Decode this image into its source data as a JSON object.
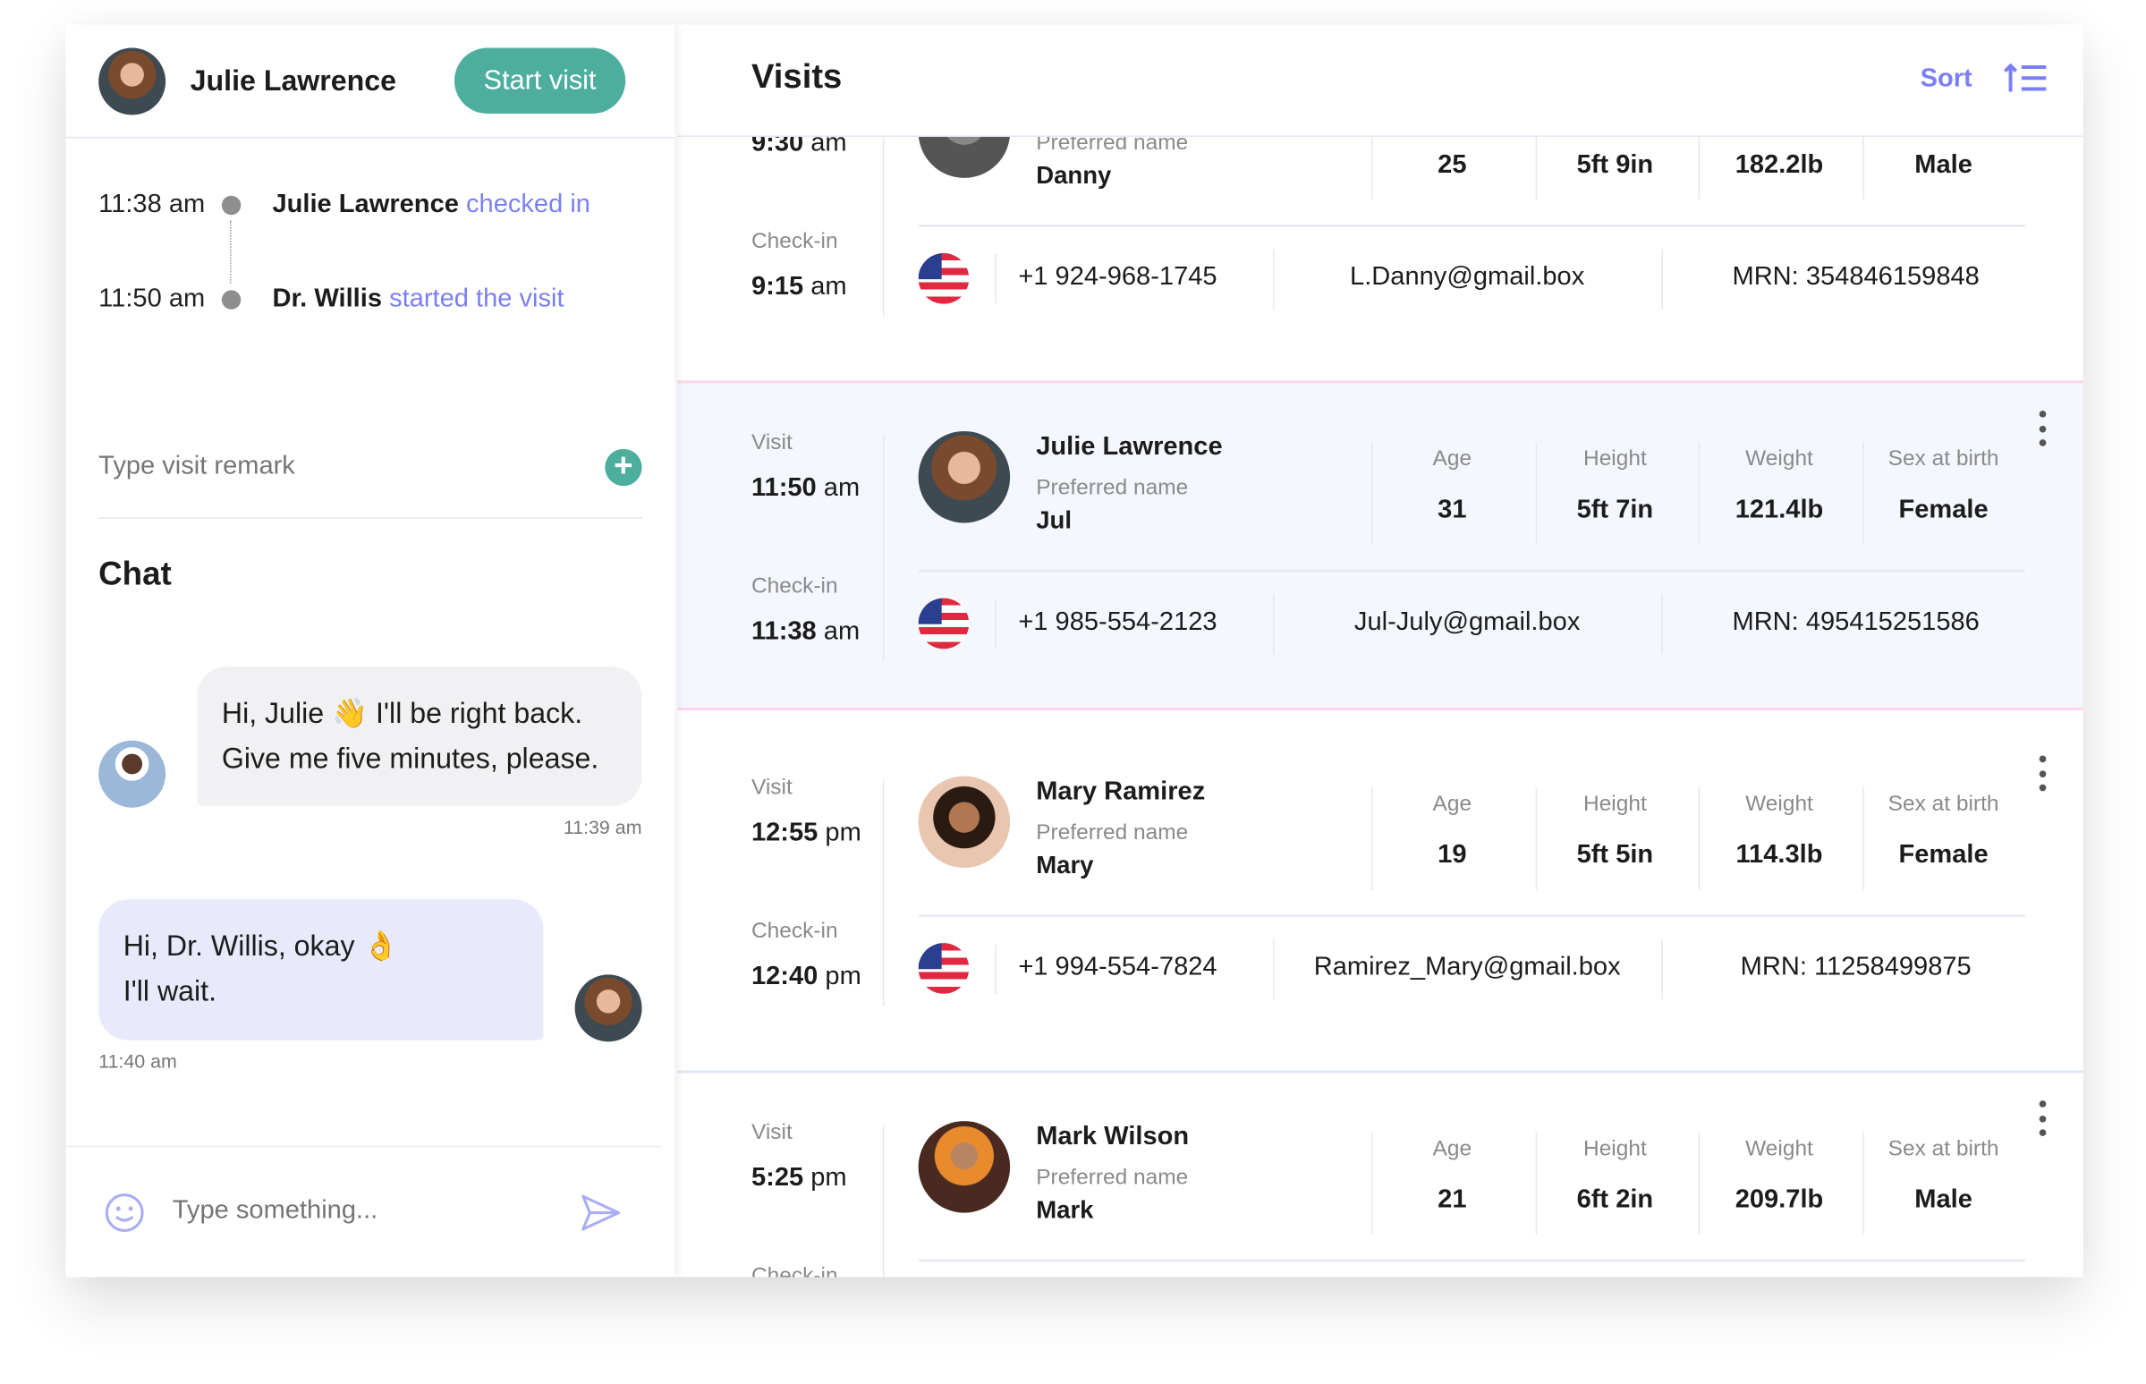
{
  "colors": {
    "accent": "#7b7ff5",
    "teal": "#4dae9e",
    "highlight_bg": "#f5f7fe",
    "highlight_border": "#fbd5ef"
  },
  "left": {
    "patient_name": "Julie Lawrence",
    "start_visit_label": "Start visit",
    "timeline": [
      {
        "time": "11:38 am",
        "actor": "Julie Lawrence",
        "action": "checked in"
      },
      {
        "time": "11:50 am",
        "actor": "Dr. Willis",
        "action": "started the visit"
      }
    ],
    "remark_placeholder": "Type visit remark",
    "chat_title": "Chat",
    "messages": [
      {
        "from": "doctor",
        "line1": "Hi, Julie 👋  I'll be right back.",
        "line2": "Give me five minutes, please.",
        "time": "11:39 am"
      },
      {
        "from": "patient",
        "line1": "Hi, Dr. Willis, okay 👌",
        "line2": "I'll wait.",
        "time": "11:40 am"
      }
    ],
    "message_placeholder": "Type something..."
  },
  "right": {
    "title": "Visits",
    "sort_label": "Sort",
    "labels": {
      "visit": "Visit",
      "checkin": "Check-in",
      "preferred": "Preferred name",
      "age": "Age",
      "height": "Height",
      "weight": "Weight",
      "sex": "Sex at birth"
    },
    "visits": [
      {
        "name": "",
        "visit_time": "9:30",
        "visit_ampm": "am",
        "checkin_time": "9:15",
        "checkin_ampm": "am",
        "preferred": "Danny",
        "age": "25",
        "height": "5ft 9in",
        "weight": "182.2lb",
        "sex": "Male",
        "phone": "+1 924-968-1745",
        "email": "L.Danny@gmail.box",
        "mrn": "MRN: 354846159848",
        "avatar": "danny",
        "highlighted": false
      },
      {
        "name": "Julie Lawrence",
        "visit_time": "11:50",
        "visit_ampm": "am",
        "checkin_time": "11:38",
        "checkin_ampm": "am",
        "preferred": "Jul",
        "age": "31",
        "height": "5ft 7in",
        "weight": "121.4lb",
        "sex": "Female",
        "phone": "+1 985-554-2123",
        "email": "Jul-July@gmail.box",
        "mrn": "MRN: 495415251586",
        "avatar": "julie",
        "highlighted": true
      },
      {
        "name": "Mary Ramirez",
        "visit_time": "12:55",
        "visit_ampm": "pm",
        "checkin_time": "12:40",
        "checkin_ampm": "pm",
        "preferred": "Mary",
        "age": "19",
        "height": "5ft 5in",
        "weight": "114.3lb",
        "sex": "Female",
        "phone": "+1 994-554-7824",
        "email": "Ramirez_Mary@gmail.box",
        "mrn": "MRN: 11258499875",
        "avatar": "mary",
        "highlighted": false
      },
      {
        "name": "Mark Wilson",
        "visit_time": "5:25",
        "visit_ampm": "pm",
        "checkin_time": "",
        "checkin_ampm": "",
        "preferred": "Mark",
        "age": "21",
        "height": "6ft 2in",
        "weight": "209.7lb",
        "sex": "Male",
        "phone": "",
        "email": "",
        "mrn": "",
        "avatar": "mark",
        "highlighted": false
      }
    ]
  }
}
